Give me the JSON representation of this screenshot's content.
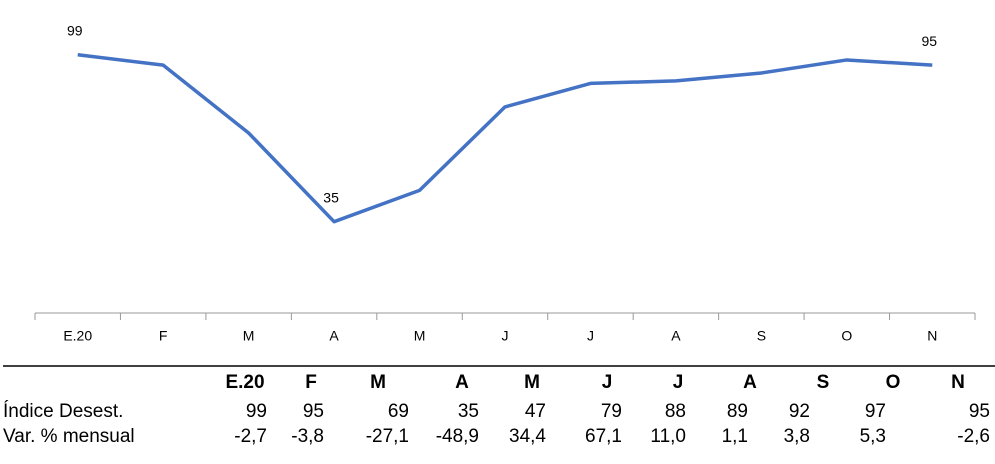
{
  "chart_data": {
    "type": "line",
    "categories": [
      "E.20",
      "F",
      "M",
      "A",
      "M",
      "J",
      "J",
      "A",
      "S",
      "O",
      "N"
    ],
    "values": [
      99,
      95,
      69,
      35,
      47,
      79,
      88,
      89,
      92,
      97,
      95
    ],
    "value_labels": [
      "99",
      null,
      null,
      "35",
      null,
      null,
      null,
      null,
      null,
      null,
      "95"
    ],
    "color": "#4472c4",
    "ylim": [
      0,
      115
    ],
    "table": {
      "rows": [
        {
          "label": "Índice Desest."
        },
        {
          "label": "Var. % mensual",
          "values": [
            "-2,7",
            "-3,8",
            "-27,1",
            "-48,9",
            "34,4",
            "67,1",
            "11,0",
            "1,1",
            "3,8",
            "5,3",
            "-2,6"
          ]
        }
      ]
    }
  }
}
